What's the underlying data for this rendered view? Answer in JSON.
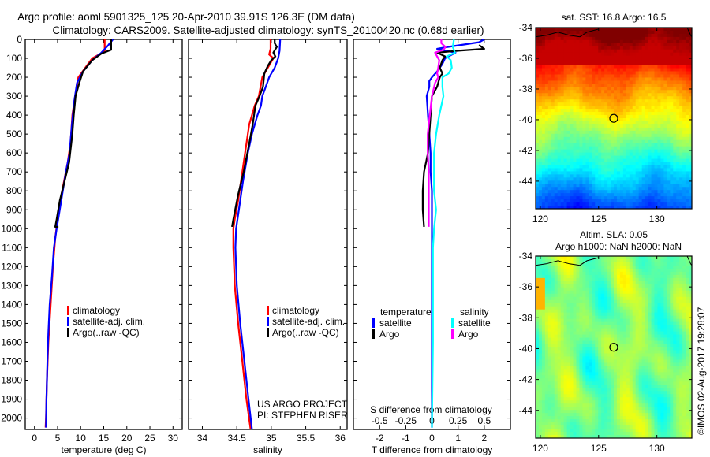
{
  "header": {
    "line1": "Argo profile: aoml 5901325_125 20-Apr-2010 39.91S 126.3E (DM data)",
    "line2": "Climatology: CARS2009. Satellite-adjusted climatology: synTS_20100420.nc (0.68d earlier)"
  },
  "colors": {
    "climatology": "#ff0000",
    "satellite": "#0000ff",
    "argo": "#000000",
    "s_satellite": "#00ffff",
    "s_argo": "#ff00ff"
  },
  "footer": {
    "project": "US ARGO PROJECT",
    "pi": "PI: STEPHEN RISER",
    "copyright": "©IMOS 02-Aug-2017 19:28:07"
  },
  "chart_data": [
    {
      "type": "line",
      "title": "",
      "xlabel": "temperature (deg C)",
      "ylabel": "",
      "xlim": [
        -2,
        32
      ],
      "ylim": [
        2060,
        0
      ],
      "xticks": [
        0,
        5,
        10,
        15,
        20,
        25,
        30
      ],
      "yticks": [
        0,
        100,
        200,
        300,
        400,
        500,
        600,
        700,
        800,
        900,
        1000,
        1100,
        1200,
        1300,
        1400,
        1500,
        1600,
        1700,
        1800,
        1900,
        2000
      ],
      "legend": [
        "climatology",
        "satellite-adj. clim.",
        "Argo(..raw -QC)"
      ],
      "legend_position": "lower-center",
      "series": [
        {
          "name": "climatology",
          "color": "climatology",
          "points": [
            [
              15.2,
              0
            ],
            [
              15.2,
              60
            ],
            [
              14.0,
              80
            ],
            [
              12.5,
              100
            ],
            [
              11.0,
              150
            ],
            [
              9.5,
              200
            ],
            [
              8.8,
              300
            ],
            [
              8.2,
              400
            ],
            [
              7.8,
              550
            ],
            [
              7.2,
              650
            ],
            [
              6.0,
              800
            ],
            [
              5.0,
              950
            ],
            [
              4.5,
              1050
            ],
            [
              4.0,
              1200
            ],
            [
              3.5,
              1400
            ],
            [
              3.0,
              1600
            ],
            [
              2.7,
              1800
            ],
            [
              2.5,
              2000
            ],
            [
              2.4,
              2050
            ]
          ]
        },
        {
          "name": "satellite-adj. clim.",
          "color": "satellite",
          "points": [
            [
              17.0,
              0
            ],
            [
              16.0,
              30
            ],
            [
              14.5,
              70
            ],
            [
              12.5,
              110
            ],
            [
              10.5,
              170
            ],
            [
              9.2,
              230
            ],
            [
              8.6,
              330
            ],
            [
              8.1,
              450
            ],
            [
              7.6,
              600
            ],
            [
              6.8,
              700
            ],
            [
              5.8,
              850
            ],
            [
              4.8,
              1000
            ],
            [
              4.2,
              1100
            ],
            [
              3.8,
              1250
            ],
            [
              3.3,
              1400
            ],
            [
              3.0,
              1550
            ],
            [
              2.8,
              1700
            ],
            [
              2.6,
              1900
            ],
            [
              2.5,
              2050
            ]
          ]
        },
        {
          "name": "Argo(..raw -QC)",
          "color": "argo",
          "points": [
            [
              16.6,
              0
            ],
            [
              16.6,
              55
            ],
            [
              14.5,
              75
            ],
            [
              12.5,
              110
            ],
            [
              10.5,
              170
            ],
            [
              9.7,
              230
            ],
            [
              8.9,
              300
            ],
            [
              8.5,
              400
            ],
            [
              8.2,
              500
            ],
            [
              7.5,
              650
            ],
            [
              6.5,
              750
            ],
            [
              5.5,
              850
            ],
            [
              4.8,
              950
            ],
            [
              4.5,
              990
            ],
            [
              5.2,
              990
            ]
          ]
        }
      ]
    },
    {
      "type": "line",
      "title": "",
      "xlabel": "salinity",
      "ylabel": "",
      "xlim": [
        33.8,
        36.1
      ],
      "ylim": [
        2060,
        0
      ],
      "xticks": [
        34,
        34.5,
        35,
        35.5,
        36
      ],
      "legend": [
        "climatology",
        "satellite-adj. clim.",
        "Argo(..raw -QC)"
      ],
      "legend_position": "lower-right",
      "series": [
        {
          "name": "climatology",
          "color": "climatology",
          "points": [
            [
              34.99,
              0
            ],
            [
              34.99,
              50
            ],
            [
              34.97,
              80
            ],
            [
              35.03,
              100
            ],
            [
              34.95,
              150
            ],
            [
              34.87,
              200
            ],
            [
              34.82,
              300
            ],
            [
              34.76,
              350
            ],
            [
              34.68,
              450
            ],
            [
              34.64,
              550
            ],
            [
              34.58,
              700
            ],
            [
              34.52,
              850
            ],
            [
              34.47,
              950
            ],
            [
              34.45,
              1000
            ],
            [
              34.45,
              1100
            ],
            [
              34.47,
              1300
            ],
            [
              34.52,
              1500
            ],
            [
              34.58,
              1700
            ],
            [
              34.64,
              1900
            ],
            [
              34.7,
              2060
            ]
          ]
        },
        {
          "name": "satellite-adj. clim.",
          "color": "satellite",
          "points": [
            [
              35.13,
              0
            ],
            [
              35.12,
              60
            ],
            [
              35.1,
              100
            ],
            [
              35.05,
              150
            ],
            [
              34.97,
              200
            ],
            [
              34.92,
              250
            ],
            [
              34.87,
              300
            ],
            [
              34.85,
              350
            ],
            [
              34.8,
              400
            ],
            [
              34.72,
              500
            ],
            [
              34.66,
              600
            ],
            [
              34.59,
              750
            ],
            [
              34.53,
              900
            ],
            [
              34.49,
              1000
            ],
            [
              34.48,
              1100
            ],
            [
              34.5,
              1300
            ],
            [
              34.55,
              1500
            ],
            [
              34.61,
              1700
            ],
            [
              34.67,
              1900
            ],
            [
              34.72,
              2060
            ]
          ]
        },
        {
          "name": "Argo(..raw -QC)",
          "color": "argo",
          "points": [
            [
              35.05,
              0
            ],
            [
              35.05,
              20
            ],
            [
              35.08,
              40
            ],
            [
              35.03,
              70
            ],
            [
              35.06,
              90
            ],
            [
              35.0,
              110
            ],
            [
              34.95,
              140
            ],
            [
              34.9,
              180
            ],
            [
              34.88,
              250
            ],
            [
              34.83,
              300
            ],
            [
              34.77,
              350
            ],
            [
              34.73,
              450
            ],
            [
              34.68,
              550
            ],
            [
              34.6,
              700
            ],
            [
              34.52,
              820
            ],
            [
              34.45,
              950
            ],
            [
              34.43,
              990
            ]
          ]
        }
      ]
    },
    {
      "type": "line",
      "title": "",
      "xlabel": "T difference from climatology",
      "xlabel2": "S difference from climatology",
      "ylabel": "",
      "xlim": [
        -3,
        3
      ],
      "xlim_s": [
        -0.75,
        0.75
      ],
      "ylim": [
        2060,
        0
      ],
      "xticks": [
        -2,
        -1,
        0,
        1,
        2
      ],
      "xticks_s": [
        "-0.5",
        "-0.25",
        "0",
        "0.25",
        "0.5"
      ],
      "legend_temperature_title": "temperature",
      "legend_salinity_title": "salinity",
      "legend": [
        "satellite",
        "Argo",
        "satellite",
        "Argo"
      ],
      "legend_position": "lower-center",
      "series": [
        {
          "name": "temperature satellite",
          "color": "satellite",
          "axis": "T",
          "points": [
            [
              2.0,
              0
            ],
            [
              1.8,
              15
            ],
            [
              0.6,
              40
            ],
            [
              0.2,
              50
            ],
            [
              0.9,
              70
            ],
            [
              0.5,
              100
            ],
            [
              0.4,
              130
            ],
            [
              0.2,
              170
            ],
            [
              0.0,
              200
            ],
            [
              -0.1,
              220
            ],
            [
              -0.1,
              250
            ],
            [
              -0.2,
              300
            ],
            [
              -0.15,
              400
            ],
            [
              -0.1,
              500
            ],
            [
              -0.05,
              600
            ],
            [
              -0.05,
              700
            ],
            [
              0.0,
              800
            ],
            [
              0.0,
              900
            ],
            [
              0.0,
              1000
            ],
            [
              0.0,
              1200
            ],
            [
              0.0,
              1500
            ],
            [
              0.0,
              2050
            ]
          ]
        },
        {
          "name": "temperature Argo",
          "color": "argo",
          "axis": "T",
          "points": [
            [
              1.8,
              30
            ],
            [
              2.0,
              50
            ],
            [
              1.0,
              60
            ],
            [
              0.2,
              70
            ],
            [
              0.5,
              90
            ],
            [
              0.4,
              110
            ],
            [
              0.3,
              150
            ],
            [
              0.4,
              180
            ],
            [
              0.3,
              200
            ],
            [
              0.2,
              250
            ],
            [
              0.0,
              300
            ],
            [
              -0.05,
              400
            ],
            [
              -0.1,
              500
            ],
            [
              -0.15,
              600
            ],
            [
              -0.3,
              700
            ],
            [
              -0.35,
              800
            ],
            [
              -0.35,
              900
            ],
            [
              -0.3,
              990
            ]
          ]
        },
        {
          "name": "salinity satellite",
          "color": "s_satellite",
          "axis": "S",
          "points": [
            [
              0.21,
              0
            ],
            [
              0.2,
              40
            ],
            [
              0.22,
              70
            ],
            [
              0.14,
              90
            ],
            [
              0.18,
              110
            ],
            [
              0.19,
              150
            ],
            [
              0.16,
              180
            ],
            [
              0.1,
              200
            ],
            [
              0.1,
              250
            ],
            [
              0.11,
              300
            ],
            [
              0.07,
              400
            ],
            [
              0.04,
              500
            ],
            [
              0.02,
              600
            ],
            [
              0.02,
              700
            ],
            [
              0.02,
              800
            ],
            [
              0.04,
              900
            ],
            [
              0.02,
              1000
            ],
            [
              0.01,
              1100
            ],
            [
              0.01,
              1300
            ],
            [
              0.01,
              1600
            ],
            [
              0.0,
              2050
            ]
          ]
        },
        {
          "name": "salinity Argo",
          "color": "s_argo",
          "axis": "S",
          "points": [
            [
              0.09,
              0
            ],
            [
              0.09,
              20
            ],
            [
              0.13,
              40
            ],
            [
              0.11,
              55
            ],
            [
              0.03,
              70
            ],
            [
              0.05,
              90
            ],
            [
              0.07,
              110
            ],
            [
              0.06,
              150
            ],
            [
              0.05,
              180
            ],
            [
              0.06,
              200
            ],
            [
              0.03,
              230
            ],
            [
              0.0,
              300
            ],
            [
              -0.02,
              400
            ],
            [
              -0.04,
              500
            ],
            [
              -0.04,
              600
            ],
            [
              -0.03,
              700
            ],
            [
              -0.03,
              800
            ],
            [
              -0.03,
              950
            ],
            [
              -0.03,
              990
            ]
          ]
        }
      ]
    },
    {
      "type": "heatmap",
      "title": "sat. SST: 16.8 Argo: 16.5",
      "xlim": [
        119.6,
        133.0
      ],
      "ylim": [
        -45.8,
        -34
      ],
      "xticks": [
        120,
        125,
        130
      ],
      "yticks": [
        -34,
        -36,
        -38,
        -40,
        -42,
        -44
      ],
      "marker": {
        "lon": 126.3,
        "lat": -39.91
      },
      "colormap": "jet",
      "description": "SST: warm (dark red) north of -36, orange -37 to -39, yellow near -40, green -41 to -43, cyan/blue south of -44"
    },
    {
      "type": "heatmap",
      "title": "Altim. SLA: 0.05",
      "subtitle": "Argo h1000: NaN h2000: NaN",
      "xlim": [
        119.6,
        133.0
      ],
      "ylim": [
        -45.8,
        -34
      ],
      "xticks": [
        120,
        125,
        130
      ],
      "yticks": [
        -34,
        -36,
        -38,
        -40,
        -42,
        -44
      ],
      "marker": {
        "lon": 126.3,
        "lat": -39.91
      },
      "colormap": "jet",
      "description": "SLA: mostly green with yellow-green eddy patches"
    }
  ]
}
